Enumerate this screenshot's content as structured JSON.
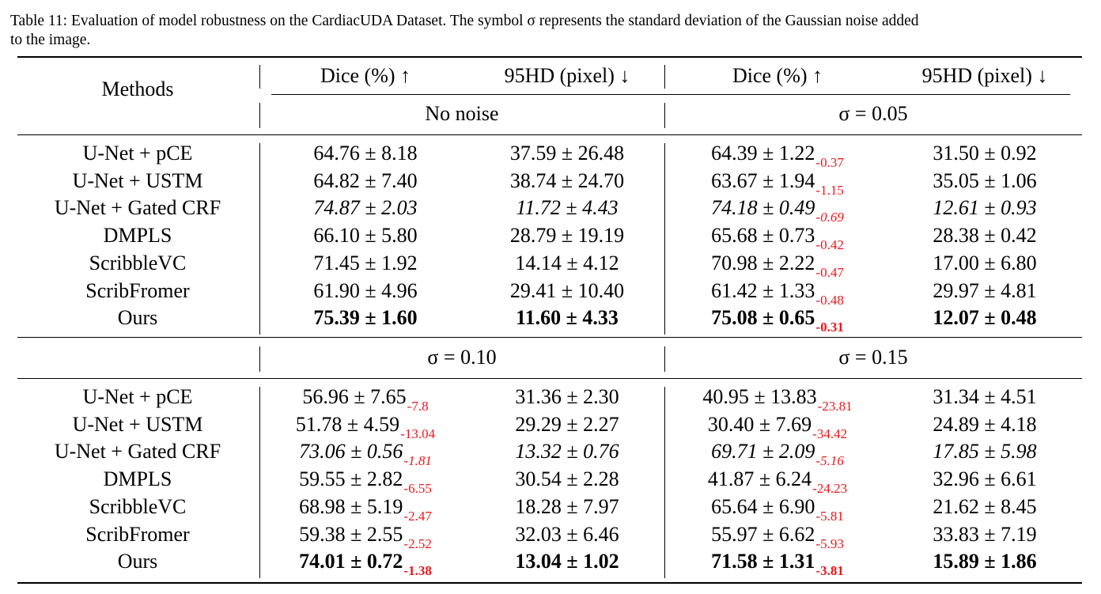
{
  "caption": {
    "lines": [
      "Table 11: Evaluation of model robustness on the CardiacUDA Dataset. The symbol σ represents the standard deviation of the Gaussian noise added",
      "to the image."
    ]
  },
  "header": {
    "methods": "Methods",
    "dice": "Dice (%) ↑",
    "hd": "95HD (pixel) ↓"
  },
  "blocks": [
    {
      "left_condition": "No noise",
      "right_condition": "σ = 0.05",
      "rows": [
        {
          "method": "U-Net + pCE",
          "style": "normal",
          "l_dice": "64.76 ± 8.18",
          "l_dice_delta": "",
          "l_hd": "37.59 ± 26.48",
          "r_dice": "64.39 ± 1.22",
          "r_dice_delta": "-0.37",
          "r_hd": "31.50 ± 0.92"
        },
        {
          "method": "U-Net + USTM",
          "style": "normal",
          "l_dice": "64.82 ± 7.40",
          "l_dice_delta": "",
          "l_hd": "38.74 ± 24.70",
          "r_dice": "63.67 ± 1.94",
          "r_dice_delta": "-1.15",
          "r_hd": "35.05 ± 1.06"
        },
        {
          "method": "U-Net + Gated CRF",
          "style": "italic",
          "l_dice": "74.87 ± 2.03",
          "l_dice_delta": "",
          "l_hd": "11.72 ± 4.43",
          "r_dice": "74.18 ± 0.49",
          "r_dice_delta": "-0.69",
          "r_hd": "12.61 ± 0.93"
        },
        {
          "method": "DMPLS",
          "style": "normal",
          "l_dice": "66.10 ± 5.80",
          "l_dice_delta": "",
          "l_hd": "28.79 ± 19.19",
          "r_dice": "65.68 ± 0.73",
          "r_dice_delta": "-0.42",
          "r_hd": "28.38 ± 0.42"
        },
        {
          "method": "ScribbleVC",
          "style": "normal",
          "l_dice": "71.45 ± 1.92",
          "l_dice_delta": "",
          "l_hd": "14.14 ± 4.12",
          "r_dice": "70.98 ± 2.22",
          "r_dice_delta": "-0.47",
          "r_hd": "17.00 ± 6.80"
        },
        {
          "method": "ScribFromer",
          "style": "normal",
          "l_dice": "61.90 ± 4.96",
          "l_dice_delta": "",
          "l_hd": "29.41 ± 10.40",
          "r_dice": "61.42 ± 1.33",
          "r_dice_delta": "-0.48",
          "r_hd": "29.97 ± 4.81"
        },
        {
          "method": "Ours",
          "style": "bold",
          "l_dice": "75.39 ± 1.60",
          "l_dice_delta": "",
          "l_hd": "11.60 ± 4.33",
          "r_dice": "75.08 ± 0.65",
          "r_dice_delta": "-0.31",
          "r_hd": "12.07 ± 0.48"
        }
      ]
    },
    {
      "left_condition": "σ = 0.10",
      "right_condition": "σ = 0.15",
      "rows": [
        {
          "method": "U-Net + pCE",
          "style": "normal",
          "l_dice": "56.96 ± 7.65",
          "l_dice_delta": "-7.8",
          "l_hd": "31.36 ± 2.30",
          "r_dice": "40.95 ± 13.83",
          "r_dice_delta": "-23.81",
          "r_hd": "31.34 ± 4.51"
        },
        {
          "method": "U-Net + USTM",
          "style": "normal",
          "l_dice": "51.78 ± 4.59",
          "l_dice_delta": "-13.04",
          "l_hd": "29.29 ± 2.27",
          "r_dice": "30.40 ± 7.69",
          "r_dice_delta": "-34.42",
          "r_hd": "24.89 ± 4.18"
        },
        {
          "method": "U-Net + Gated CRF",
          "style": "italic",
          "l_dice": "73.06 ± 0.56",
          "l_dice_delta": "-1.81",
          "l_hd": "13.32 ± 0.76",
          "r_dice": "69.71 ± 2.09",
          "r_dice_delta": "-5.16",
          "r_hd": "17.85 ± 5.98"
        },
        {
          "method": "DMPLS",
          "style": "normal",
          "l_dice": "59.55 ± 2.82",
          "l_dice_delta": "-6.55",
          "l_hd": "30.54 ± 2.28",
          "r_dice": "41.87 ± 6.24",
          "r_dice_delta": "-24.23",
          "r_hd": "32.96 ± 6.61"
        },
        {
          "method": "ScribbleVC",
          "style": "normal",
          "l_dice": "68.98 ± 5.19",
          "l_dice_delta": "-2.47",
          "l_hd": "18.28 ± 7.97",
          "r_dice": "65.64 ± 6.90",
          "r_dice_delta": "-5.81",
          "r_hd": "21.62 ± 8.45"
        },
        {
          "method": "ScribFromer",
          "style": "normal",
          "l_dice": "59.38 ± 2.55",
          "l_dice_delta": "-2.52",
          "l_hd": "32.03 ± 6.46",
          "r_dice": "55.97 ± 6.62",
          "r_dice_delta": "-5.93",
          "r_hd": "33.83 ± 7.19"
        },
        {
          "method": "Ours",
          "style": "bold",
          "l_dice": "74.01 ± 0.72",
          "l_dice_delta": "-1.38",
          "l_hd": "13.04 ± 1.02",
          "r_dice": "71.58 ± 1.31",
          "r_dice_delta": "-3.81",
          "r_hd": "15.89 ± 1.86"
        }
      ]
    }
  ]
}
